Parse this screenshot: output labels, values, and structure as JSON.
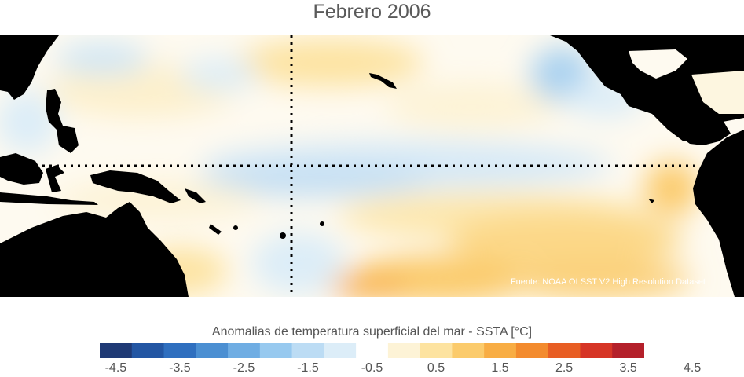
{
  "title": "Febrero 2006",
  "credit": "Fuente: NOAA OI SST V2 High Resolution Dataset",
  "colorbar": {
    "title": "Anomalias de temperatura superficial del mar - SSTA  [°C]",
    "colors": [
      "#1f3a75",
      "#2356a3",
      "#2f6fbf",
      "#4b8fd2",
      "#6fadE3",
      "#97c9ef",
      "#bcdcf4",
      "#dcedf8",
      "#ffffff",
      "#fdf3d6",
      "#fde3a0",
      "#fbcb6c",
      "#f8ad44",
      "#f38b2e",
      "#e85e24",
      "#d63526",
      "#b4202a"
    ],
    "ticks": [
      "-4.5",
      "-3.5",
      "-2.5",
      "-1.5",
      "-0.5",
      "0.5",
      "1.5",
      "2.5",
      "3.5",
      "4.5"
    ]
  },
  "land_color": "#000000"
}
